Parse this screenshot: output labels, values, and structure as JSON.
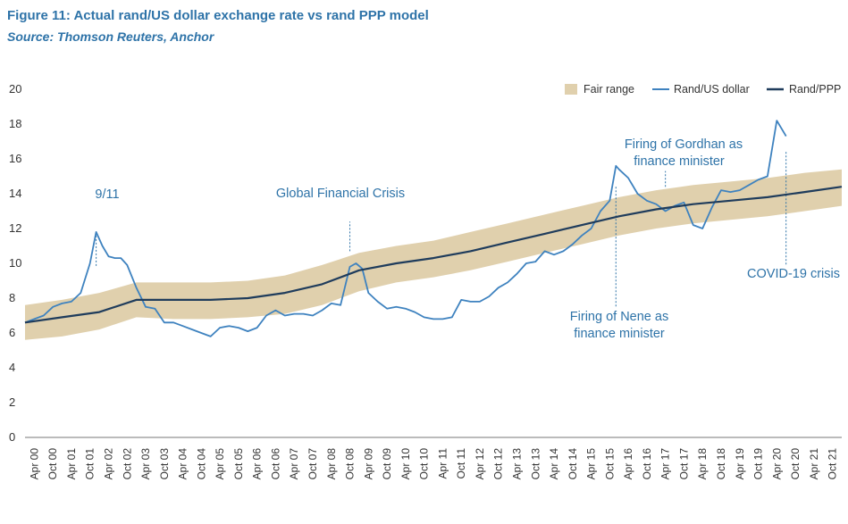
{
  "figure": {
    "title": "Figure 11: Actual rand/US dollar exchange rate vs rand PPP model",
    "source": "Source: Thomson Reuters, Anchor"
  },
  "chart_data": {
    "type": "line",
    "ylim": [
      0,
      20
    ],
    "yticks": [
      "0",
      "2",
      "4",
      "6",
      "8",
      "10",
      "12",
      "14",
      "16",
      "18",
      "20"
    ],
    "grid": false,
    "legend_position": "top-right",
    "x_tick_labels": [
      "Apr 00",
      "Oct 00",
      "Apr 01",
      "Oct 01",
      "Apr 02",
      "Oct 02",
      "Apr 03",
      "Oct 03",
      "Apr 04",
      "Oct 04",
      "Apr 05",
      "Oct 05",
      "Apr 06",
      "Oct 06",
      "Apr 07",
      "Oct 07",
      "Apr 08",
      "Oct 08",
      "Apr 09",
      "Oct 09",
      "Apr 10",
      "Oct 10",
      "Apr 11",
      "Oct 11",
      "Apr 12",
      "Oct 12",
      "Apr 13",
      "Oct 13",
      "Apr 14",
      "Oct 14",
      "Apr 15",
      "Oct 15",
      "Apr 16",
      "Oct 16",
      "Apr 17",
      "Oct 17",
      "Apr 18",
      "Oct 18",
      "Apr 19",
      "Oct 19",
      "Apr 20",
      "Oct 20",
      "Apr 21",
      "Oct 21"
    ],
    "colors": {
      "fair_range": "#e0d0ad",
      "rand_usd": "#3e82bf",
      "rand_ppp": "#1f3c5c",
      "annotation": "#2e73a8",
      "axis": "#777777"
    },
    "series": [
      {
        "name": "Fair range",
        "kind": "band",
        "x": [
          "Jan 00",
          "Jan 01",
          "Jan 02",
          "Jan 03",
          "Jan 04",
          "Jan 05",
          "Jan 06",
          "Jan 07",
          "Jan 08",
          "Jan 09",
          "Jan 10",
          "Jan 11",
          "Jan 12",
          "Jan 13",
          "Jan 14",
          "Jan 15",
          "Jan 16",
          "Jan 17",
          "Jan 18",
          "Jan 19",
          "Jan 20",
          "Jan 21",
          "Jan 22"
        ],
        "lower": [
          5.6,
          5.8,
          6.2,
          6.9,
          6.8,
          6.8,
          6.9,
          7.1,
          7.6,
          8.4,
          8.9,
          9.2,
          9.6,
          10.1,
          10.6,
          11.1,
          11.6,
          12.0,
          12.3,
          12.5,
          12.7,
          13.0,
          13.3
        ],
        "upper": [
          7.6,
          7.9,
          8.3,
          8.9,
          8.9,
          8.9,
          9.0,
          9.3,
          9.9,
          10.6,
          11.0,
          11.3,
          11.8,
          12.3,
          12.8,
          13.3,
          13.8,
          14.2,
          14.5,
          14.7,
          14.9,
          15.2,
          15.4
        ]
      },
      {
        "name": "Rand/US dollar",
        "kind": "line",
        "x": [
          "Jan 00",
          "Apr 00",
          "Jul 00",
          "Oct 00",
          "Jan 01",
          "Apr 01",
          "Jul 01",
          "Oct 01",
          "Dec 01",
          "Feb 02",
          "Apr 02",
          "Jun 02",
          "Aug 02",
          "Oct 02",
          "Jan 03",
          "Apr 03",
          "Jul 03",
          "Oct 03",
          "Jan 04",
          "Apr 04",
          "Jul 04",
          "Oct 04",
          "Jan 05",
          "Apr 05",
          "Jul 05",
          "Oct 05",
          "Jan 06",
          "Apr 06",
          "Jul 06",
          "Oct 06",
          "Jan 07",
          "Apr 07",
          "Jul 07",
          "Oct 07",
          "Jan 08",
          "Apr 08",
          "Jul 08",
          "Oct 08",
          "Dec 08",
          "Feb 09",
          "Apr 09",
          "Jul 09",
          "Oct 09",
          "Jan 10",
          "Apr 10",
          "Jul 10",
          "Oct 10",
          "Jan 11",
          "Apr 11",
          "Jul 11",
          "Oct 11",
          "Jan 12",
          "Apr 12",
          "Jul 12",
          "Oct 12",
          "Jan 13",
          "Apr 13",
          "Jul 13",
          "Oct 13",
          "Jan 14",
          "Apr 14",
          "Jul 14",
          "Oct 14",
          "Jan 15",
          "Apr 15",
          "Jul 15",
          "Oct 15",
          "Dec 15",
          "Jan 16",
          "Apr 16",
          "Jul 16",
          "Oct 16",
          "Jan 17",
          "Apr 17",
          "Jul 17",
          "Oct 17",
          "Jan 18",
          "Apr 18",
          "Jul 18",
          "Oct 18",
          "Jan 19",
          "Apr 19",
          "Jul 19",
          "Oct 19",
          "Jan 20",
          "Apr 20",
          "Jul 20"
        ],
        "y": [
          6.6,
          6.8,
          7.0,
          7.5,
          7.7,
          7.8,
          8.3,
          10.0,
          11.8,
          11.0,
          10.4,
          10.3,
          10.3,
          9.9,
          8.6,
          7.5,
          7.4,
          6.6,
          6.6,
          6.4,
          6.2,
          6.0,
          5.8,
          6.3,
          6.4,
          6.3,
          6.1,
          6.3,
          7.0,
          7.3,
          7.0,
          7.1,
          7.1,
          7.0,
          7.3,
          7.7,
          7.6,
          9.8,
          10.0,
          9.7,
          8.3,
          7.8,
          7.4,
          7.5,
          7.4,
          7.2,
          6.9,
          6.8,
          6.8,
          6.9,
          7.9,
          7.8,
          7.8,
          8.1,
          8.6,
          8.9,
          9.4,
          10.0,
          10.1,
          10.7,
          10.5,
          10.7,
          11.1,
          11.6,
          12.0,
          13.0,
          13.6,
          15.6,
          15.4,
          14.9,
          14.0,
          13.6,
          13.4,
          13.0,
          13.3,
          13.5,
          12.2,
          12.0,
          13.2,
          14.2,
          14.1,
          14.2,
          14.5,
          14.8,
          15.0,
          18.2,
          17.3
        ]
      },
      {
        "name": "Rand/PPP",
        "kind": "line",
        "x": [
          "Jan 00",
          "Jan 01",
          "Jan 02",
          "Jan 03",
          "Jan 04",
          "Jan 05",
          "Jan 06",
          "Jan 07",
          "Jan 08",
          "Jan 09",
          "Jan 10",
          "Jan 11",
          "Jan 12",
          "Jan 13",
          "Jan 14",
          "Jan 15",
          "Jan 16",
          "Jan 17",
          "Jan 18",
          "Jan 19",
          "Jan 20",
          "Jan 21",
          "Jan 22"
        ],
        "y": [
          6.6,
          6.9,
          7.2,
          7.9,
          7.9,
          7.9,
          8.0,
          8.3,
          8.8,
          9.6,
          10.0,
          10.3,
          10.7,
          11.2,
          11.7,
          12.2,
          12.7,
          13.1,
          13.4,
          13.6,
          13.8,
          14.1,
          14.4
        ]
      }
    ],
    "annotations": [
      {
        "text": "9/11",
        "x": "Oct 01"
      },
      {
        "text": "Global Financial Crisis",
        "x": "Oct 08"
      },
      {
        "text": "Firing of Gordhan as",
        "text2": "finance minister",
        "x": "Apr 17"
      },
      {
        "text": "Firing of Nene as",
        "text2": "finance minister",
        "x": "Dec 15"
      },
      {
        "text": "COVID-19 crisis",
        "x": "Apr 20"
      }
    ]
  }
}
